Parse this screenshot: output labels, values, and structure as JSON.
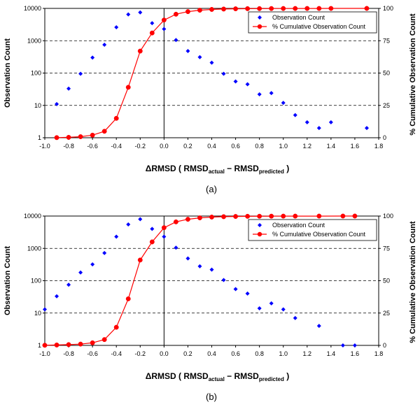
{
  "chart_data": [
    {
      "type": "scatter",
      "panel_label": "(a)",
      "xlabel_prefix": "ΔRMSD ( RMSD",
      "xlabel_sub1": "actual",
      "xlabel_mid": " − RMSD",
      "xlabel_sub2": "predicted",
      "xlabel_suffix": " )",
      "ylabel": "Observation Count",
      "y2label": "% Cumulative Observation Count",
      "xlim": [
        -1.0,
        1.8
      ],
      "ylim": [
        1,
        10000
      ],
      "yscale": "log",
      "y2lim": [
        0,
        100
      ],
      "grid": "horizontal dashed",
      "legend_position": "top-right",
      "xticks": [
        "-1.0",
        "-0.8",
        "-0.6",
        "-0.4",
        "-0.2",
        "0.0",
        "0.2",
        "0.4",
        "0.6",
        "0.8",
        "1.0",
        "1.2",
        "1.4",
        "1.6",
        "1.8"
      ],
      "yticks": [
        "1",
        "10",
        "100",
        "1000",
        "10000"
      ],
      "y2ticks": [
        "0",
        "25",
        "50",
        "75",
        "100"
      ],
      "series": [
        {
          "name": "Observation Count",
          "axis": "left",
          "color": "#0000ff",
          "marker": "diamond",
          "x": [
            -0.9,
            -0.8,
            -0.7,
            -0.6,
            -0.5,
            -0.4,
            -0.3,
            -0.2,
            -0.1,
            0.0,
            0.1,
            0.2,
            0.3,
            0.4,
            0.5,
            0.6,
            0.7,
            0.8,
            0.9,
            1.0,
            1.1,
            1.2,
            1.3,
            1.4,
            1.7
          ],
          "y": [
            11,
            33,
            95,
            300,
            750,
            2600,
            6500,
            7500,
            3500,
            2300,
            1050,
            480,
            310,
            210,
            95,
            55,
            45,
            22,
            24,
            12,
            5,
            3,
            2,
            3,
            2
          ]
        },
        {
          "name": "% Cumulative Observation Count",
          "axis": "right",
          "color": "#ff0000",
          "marker": "circle-line",
          "x": [
            -0.9,
            -0.8,
            -0.7,
            -0.6,
            -0.5,
            -0.4,
            -0.3,
            -0.2,
            -0.1,
            0.0,
            0.1,
            0.2,
            0.3,
            0.4,
            0.5,
            0.6,
            0.7,
            0.8,
            0.9,
            1.0,
            1.1,
            1.2,
            1.3,
            1.4,
            1.7
          ],
          "y": [
            0.1,
            0.3,
            0.8,
            2.0,
            5.0,
            15.0,
            39.0,
            67.0,
            81.0,
            91.0,
            95.5,
            97.5,
            98.6,
            99.2,
            99.5,
            99.7,
            99.8,
            99.85,
            99.9,
            99.93,
            99.95,
            99.96,
            99.97,
            99.98,
            100
          ]
        }
      ]
    },
    {
      "type": "scatter",
      "panel_label": "(b)",
      "xlabel_prefix": "ΔRMSD ( RMSD",
      "xlabel_sub1": "actual",
      "xlabel_mid": " − RMSD",
      "xlabel_sub2": "predicted",
      "xlabel_suffix": " )",
      "ylabel": "Observation Count",
      "y2label": "% Cumulative Observation Count",
      "xlim": [
        -1.0,
        1.8
      ],
      "ylim": [
        1,
        10000
      ],
      "yscale": "log",
      "y2lim": [
        0,
        100
      ],
      "grid": "horizontal dashed",
      "legend_position": "top-right",
      "xticks": [
        "-1.0",
        "-0.8",
        "-0.6",
        "-0.4",
        "-0.2",
        "0.0",
        "0.2",
        "0.4",
        "0.6",
        "0.8",
        "1.0",
        "1.2",
        "1.4",
        "1.6",
        "1.8"
      ],
      "yticks": [
        "1",
        "10",
        "100",
        "1000",
        "10000"
      ],
      "y2ticks": [
        "0",
        "25",
        "50",
        "75",
        "100"
      ],
      "series": [
        {
          "name": "Observation Count",
          "axis": "left",
          "color": "#0000ff",
          "marker": "diamond",
          "x": [
            -1.0,
            -0.9,
            -0.8,
            -0.7,
            -0.6,
            -0.5,
            -0.4,
            -0.3,
            -0.2,
            -0.1,
            0.0,
            0.1,
            0.2,
            0.3,
            0.4,
            0.5,
            0.6,
            0.7,
            0.8,
            0.9,
            1.0,
            1.1,
            1.3,
            1.5,
            1.6
          ],
          "y": [
            13,
            33,
            75,
            180,
            320,
            720,
            2300,
            5500,
            8000,
            4000,
            2300,
            1050,
            490,
            280,
            220,
            105,
            55,
            40,
            14,
            20,
            13,
            7,
            4,
            1,
            1
          ]
        },
        {
          "name": "% Cumulative Observation Count",
          "axis": "right",
          "color": "#ff0000",
          "marker": "circle-line",
          "x": [
            -1.0,
            -0.9,
            -0.8,
            -0.7,
            -0.6,
            -0.5,
            -0.4,
            -0.3,
            -0.2,
            -0.1,
            0.0,
            0.1,
            0.2,
            0.3,
            0.4,
            0.5,
            0.6,
            0.7,
            0.8,
            0.9,
            1.0,
            1.1,
            1.3,
            1.5,
            1.6
          ],
          "y": [
            0.1,
            0.3,
            0.6,
            1.0,
            2.0,
            4.5,
            14.0,
            36.0,
            66.0,
            80.0,
            91.0,
            95.5,
            97.5,
            98.6,
            99.2,
            99.5,
            99.7,
            99.8,
            99.85,
            99.9,
            99.93,
            99.95,
            99.97,
            99.99,
            100
          ]
        }
      ]
    }
  ]
}
